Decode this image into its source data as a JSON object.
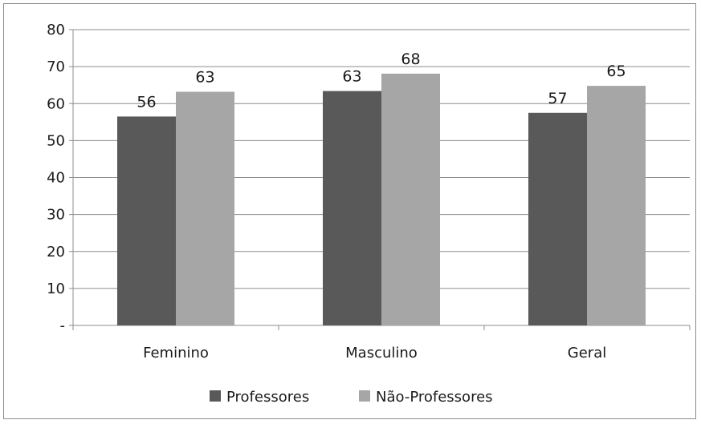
{
  "chart_data": {
    "type": "bar",
    "title": "",
    "xlabel": "",
    "ylabel": "",
    "ylim": [
      0,
      80
    ],
    "yticks": [
      0,
      10,
      20,
      30,
      40,
      50,
      60,
      70,
      80
    ],
    "ytick_labels": [
      "-",
      "10",
      "20",
      "30",
      "40",
      "50",
      "60",
      "70",
      "80"
    ],
    "grid": true,
    "legend_position": "bottom",
    "categories": [
      "Feminino",
      "Masculino",
      "Geral"
    ],
    "series": [
      {
        "name": "Professores",
        "values": [
          56.5,
          63.4,
          57.5
        ],
        "labels": [
          "56",
          "63",
          "57"
        ],
        "color": "#595959"
      },
      {
        "name": "Não-Professores",
        "values": [
          63.2,
          68.1,
          64.8
        ],
        "labels": [
          "63",
          "68",
          "65"
        ],
        "color": "#a6a6a6"
      }
    ]
  }
}
